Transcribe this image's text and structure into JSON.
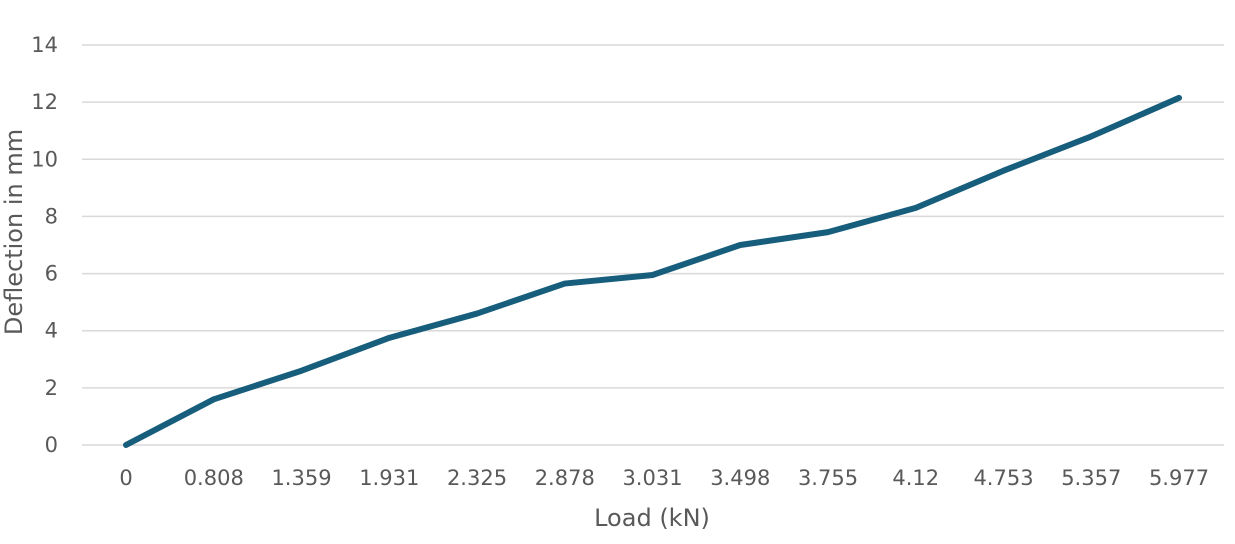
{
  "chart_data": {
    "type": "line",
    "title": "",
    "xlabel": "Load (kN)",
    "ylabel": "Deflection in mm",
    "categories": [
      "0",
      "0.808",
      "1.359",
      "1.931",
      "2.325",
      "2.878",
      "3.031",
      "3.498",
      "3.755",
      "4.12",
      "4.753",
      "5.357",
      "5.977"
    ],
    "series": [
      {
        "values": [
          0,
          1.6,
          2.6,
          3.75,
          4.6,
          5.65,
          5.95,
          7.0,
          7.45,
          8.3,
          9.6,
          10.8,
          12.15
        ]
      }
    ],
    "ylim": [
      0,
      14
    ],
    "yticks": [
      "0",
      "2",
      "4",
      "6",
      "8",
      "10",
      "12",
      "14"
    ],
    "grid": true,
    "legend": "none",
    "colors": {
      "line": "#175d7c",
      "grid": "#d9d9d9",
      "text": "#595959"
    }
  }
}
